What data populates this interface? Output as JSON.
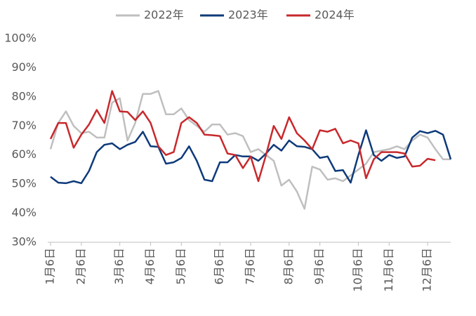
{
  "chart_data": {
    "type": "line",
    "categories": [
      "1月6日",
      null,
      null,
      null,
      "2月6日",
      null,
      null,
      null,
      null,
      "3月6日",
      null,
      null,
      null,
      "4月6日",
      null,
      null,
      null,
      "5月6日",
      null,
      null,
      null,
      null,
      "6月6日",
      null,
      null,
      null,
      "7月6日",
      null,
      null,
      null,
      null,
      "8月6日",
      null,
      null,
      null,
      "9月6日",
      null,
      null,
      null,
      null,
      "10月6日",
      null,
      null,
      null,
      "11月6日",
      null,
      null,
      null,
      null,
      "12月6日",
      null,
      null,
      null
    ],
    "series": [
      {
        "name": "2022年",
        "color": "#bfbfbf",
        "values": [
          62,
          71,
          75,
          70,
          67.5,
          68,
          66,
          66,
          78,
          79.5,
          65,
          71,
          81,
          81,
          82,
          74,
          74,
          76,
          72,
          70,
          68,
          70.5,
          70.5,
          67,
          67.5,
          66.5,
          61,
          62,
          60,
          58,
          49.5,
          51.5,
          47.5,
          41.5,
          56,
          55,
          51.5,
          52,
          51,
          53,
          55,
          57,
          61,
          61.5,
          62,
          63,
          62,
          65,
          67,
          66,
          62,
          58.5,
          58.5
        ]
      },
      {
        "name": "2023年",
        "color": "#0e3a7a",
        "values": [
          52.5,
          50.5,
          50.3,
          51,
          50.3,
          54.5,
          61,
          63.5,
          64,
          62,
          63.5,
          64.5,
          68,
          63,
          62.8,
          57,
          57.5,
          59,
          63,
          58,
          51.5,
          51,
          57.5,
          57.5,
          60,
          59.5,
          59.5,
          58,
          60.5,
          63.5,
          61.5,
          65,
          63,
          62.8,
          62,
          59,
          59.5,
          54.5,
          54.8,
          50.5,
          60,
          68.5,
          60,
          58,
          60,
          59,
          59.5,
          66,
          68.2,
          67.5,
          68.3,
          67,
          58.5
        ]
      },
      {
        "name": "2024年",
        "color": "#c8282c",
        "values": [
          65.5,
          71,
          71,
          62.5,
          67,
          70.5,
          75.5,
          71,
          82,
          75,
          74.8,
          72,
          75,
          71,
          63,
          60,
          61,
          71,
          73,
          71,
          67,
          66.8,
          66.5,
          60.5,
          60,
          55.5,
          59.5,
          51,
          60,
          70,
          65.5,
          73,
          67.5,
          65,
          62,
          68.5,
          68,
          69,
          64,
          65,
          64,
          52,
          58.5,
          61,
          61,
          61,
          60.5,
          56,
          56.3,
          58.7,
          58.2,
          null,
          null
        ]
      }
    ],
    "ylim": [
      30,
      100
    ],
    "yticks": [
      {
        "value": 30,
        "label": "30%"
      },
      {
        "value": 40,
        "label": "40%"
      },
      {
        "value": 50,
        "label": "50%"
      },
      {
        "value": 60,
        "label": "60%"
      },
      {
        "value": 70,
        "label": "70%"
      },
      {
        "value": 80,
        "label": "80%"
      },
      {
        "value": 90,
        "label": "90%"
      },
      {
        "value": 100,
        "label": "100%"
      }
    ],
    "grid": false,
    "legend": "top"
  }
}
